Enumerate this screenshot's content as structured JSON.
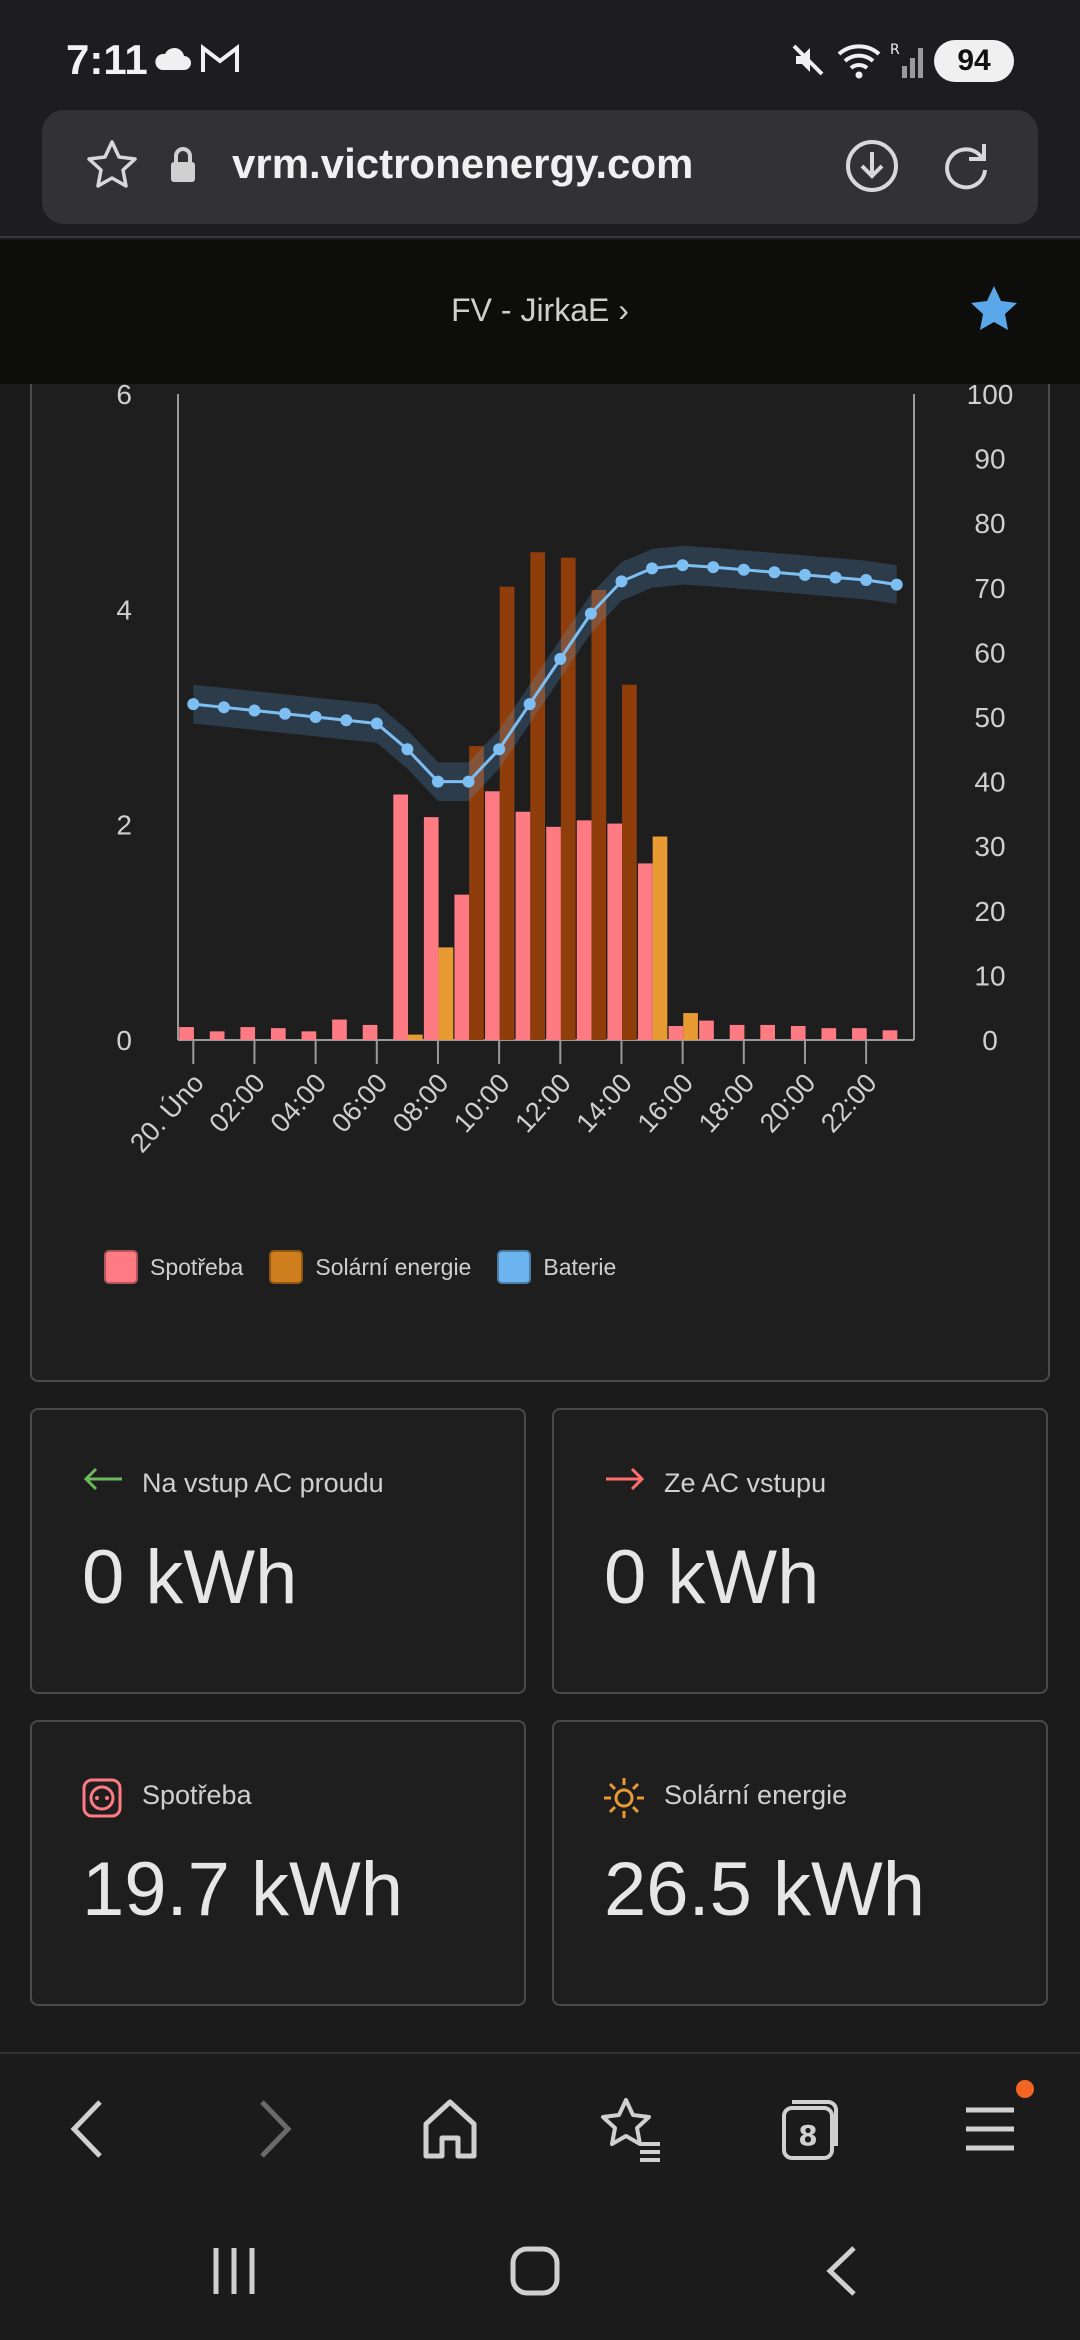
{
  "status_bar": {
    "time": "7:11",
    "battery": "94",
    "signal_label": "R"
  },
  "browser": {
    "url": "vrm.victronenergy.com"
  },
  "site": {
    "title": "FV - JirkaE ›"
  },
  "chart_data": {
    "type": "bar",
    "x": [
      "00:00",
      "01:00",
      "02:00",
      "03:00",
      "04:00",
      "05:00",
      "06:00",
      "07:00",
      "08:00",
      "09:00",
      "10:00",
      "11:00",
      "12:00",
      "13:00",
      "14:00",
      "15:00",
      "16:00",
      "17:00",
      "18:00",
      "19:00",
      "20:00",
      "21:00",
      "22:00",
      "23:00"
    ],
    "tick_labels": [
      "20. Úno",
      "02:00",
      "04:00",
      "06:00",
      "08:00",
      "10:00",
      "12:00",
      "14:00",
      "16:00",
      "18:00",
      "20:00",
      "22:00"
    ],
    "left_axis": {
      "ticks": [
        "0",
        "2",
        "4",
        "6"
      ],
      "ylim": [
        0,
        6
      ]
    },
    "right_axis": {
      "ticks": [
        "0",
        "10",
        "20",
        "30",
        "40",
        "50",
        "60",
        "70",
        "80",
        "90",
        "100"
      ],
      "ylim": [
        0,
        100
      ]
    },
    "series": [
      {
        "name": "Spotřeba",
        "color": "#ff7b84",
        "axis": "left",
        "values": [
          0.12,
          0.08,
          0.12,
          0.11,
          0.08,
          0.19,
          0.14,
          2.28,
          2.07,
          1.35,
          2.31,
          2.12,
          1.98,
          2.04,
          2.01,
          1.64,
          0.13,
          0.18,
          0.14,
          0.14,
          0.13,
          0.11,
          0.11,
          0.09
        ]
      },
      {
        "name": "Solární energie",
        "color": "#e89a33",
        "dark_color": "#8f3d0a",
        "axis": "left",
        "values": [
          0,
          0,
          0,
          0,
          0,
          0,
          0,
          0.05,
          0.86,
          2.73,
          4.21,
          4.53,
          4.48,
          4.18,
          3.3,
          1.89,
          0.25,
          0,
          0,
          0,
          0,
          0,
          0,
          0
        ]
      },
      {
        "name": "Baterie",
        "color": "#7dbff2",
        "axis": "right",
        "values": [
          52,
          51.5,
          51,
          50.5,
          50,
          49.5,
          49,
          45,
          40,
          40,
          45,
          52,
          59,
          66,
          71,
          73,
          73.5,
          73.2,
          72.8,
          72.4,
          72,
          71.6,
          71.2,
          70.5
        ]
      }
    ]
  },
  "stats": [
    {
      "label": "Na vstup AC proudu",
      "value": "0 kWh",
      "icon": "arrow-left-icon",
      "color": "#6cb85c"
    },
    {
      "label": "Ze AC vstupu",
      "value": "0 kWh",
      "icon": "arrow-right-icon",
      "color": "#ff6f6f"
    },
    {
      "label": "Spotřeba",
      "value": "19.7 kWh",
      "icon": "outlet-icon",
      "color": "#ff7b84"
    },
    {
      "label": "Solární energie",
      "value": "26.5 kWh",
      "icon": "sun-icon",
      "color": "#e89a33"
    }
  ],
  "bottom_nav": {
    "tabs_count": "8"
  }
}
